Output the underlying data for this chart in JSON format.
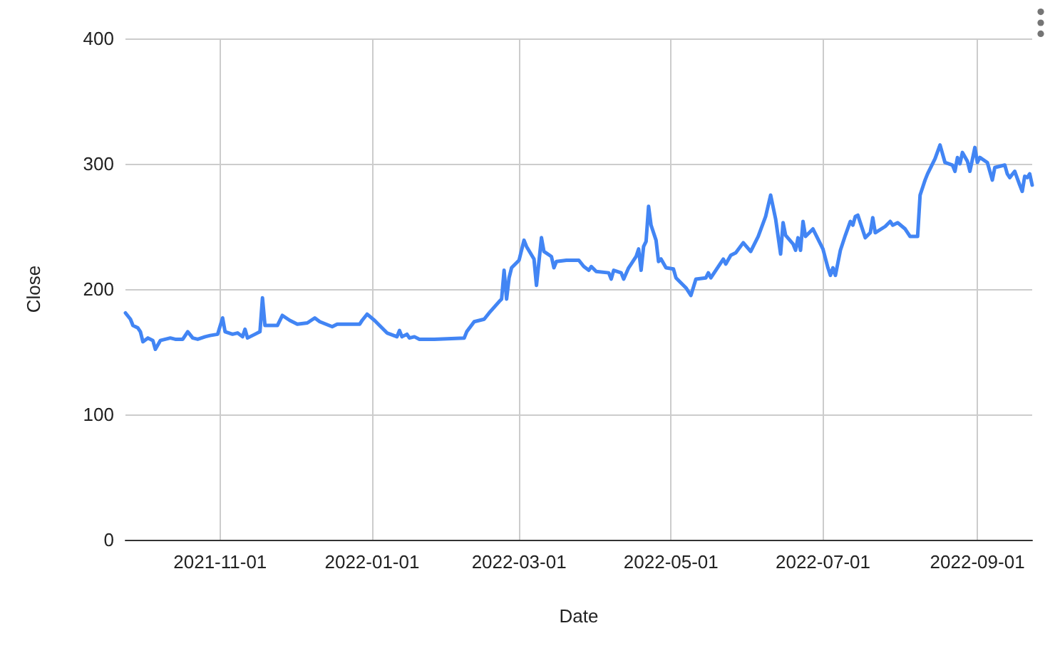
{
  "chart_data": {
    "type": "line",
    "xlabel": "Date",
    "ylabel": "Close",
    "color": "#4285f4",
    "grid": true,
    "x": [
      "2021-09-24",
      "2021-09-26",
      "2021-09-27",
      "2021-09-29",
      "2021-09-30",
      "2021-10-01",
      "2021-10-03",
      "2021-10-05",
      "2021-10-06",
      "2021-10-08",
      "2021-10-12",
      "2021-10-14",
      "2021-10-17",
      "2021-10-19",
      "2021-10-21",
      "2021-10-23",
      "2021-10-26",
      "2021-10-28",
      "2021-10-31",
      "2021-11-02",
      "2021-11-03",
      "2021-11-06",
      "2021-11-08",
      "2021-11-10",
      "2021-11-11",
      "2021-11-12",
      "2021-11-15",
      "2021-11-17",
      "2021-11-18",
      "2021-11-19",
      "2021-11-24",
      "2021-11-26",
      "2021-11-29",
      "2021-12-02",
      "2021-12-06",
      "2021-12-09",
      "2021-12-11",
      "2021-12-16",
      "2021-12-18",
      "2021-12-27",
      "2021-12-28",
      "2021-12-30",
      "2022-01-02",
      "2022-01-05",
      "2022-01-07",
      "2022-01-11",
      "2022-01-12",
      "2022-01-13",
      "2022-01-15",
      "2022-01-16",
      "2022-01-18",
      "2022-01-20",
      "2022-01-26",
      "2022-02-07",
      "2022-02-08",
      "2022-02-11",
      "2022-02-15",
      "2022-02-17",
      "2022-02-21",
      "2022-02-22",
      "2022-02-23",
      "2022-02-24",
      "2022-02-25",
      "2022-02-26",
      "2022-03-01",
      "2022-03-03",
      "2022-03-04",
      "2022-03-07",
      "2022-03-08",
      "2022-03-10",
      "2022-03-11",
      "2022-03-14",
      "2022-03-15",
      "2022-03-16",
      "2022-03-20",
      "2022-03-25",
      "2022-03-27",
      "2022-03-29",
      "2022-03-30",
      "2022-04-01",
      "2022-04-06",
      "2022-04-07",
      "2022-04-08",
      "2022-04-11",
      "2022-04-12",
      "2022-04-14",
      "2022-04-15",
      "2022-04-17",
      "2022-04-18",
      "2022-04-19",
      "2022-04-20",
      "2022-04-21",
      "2022-04-22",
      "2022-04-23",
      "2022-04-25",
      "2022-04-26",
      "2022-04-27",
      "2022-04-29",
      "2022-05-02",
      "2022-05-03",
      "2022-05-05",
      "2022-05-07",
      "2022-05-09",
      "2022-05-11",
      "2022-05-15",
      "2022-05-16",
      "2022-05-17",
      "2022-05-19",
      "2022-05-22",
      "2022-05-23",
      "2022-05-25",
      "2022-05-27",
      "2022-05-30",
      "2022-06-02",
      "2022-06-05",
      "2022-06-08",
      "2022-06-10",
      "2022-06-12",
      "2022-06-14",
      "2022-06-15",
      "2022-06-16",
      "2022-06-19",
      "2022-06-20",
      "2022-06-21",
      "2022-06-22",
      "2022-06-23",
      "2022-06-24",
      "2022-06-27",
      "2022-06-30",
      "2022-07-01",
      "2022-07-03",
      "2022-07-04",
      "2022-07-05",
      "2022-07-06",
      "2022-07-08",
      "2022-07-10",
      "2022-07-12",
      "2022-07-13",
      "2022-07-14",
      "2022-07-15",
      "2022-07-18",
      "2022-07-20",
      "2022-07-21",
      "2022-07-22",
      "2022-07-26",
      "2022-07-28",
      "2022-07-29",
      "2022-07-31",
      "2022-08-03",
      "2022-08-05",
      "2022-08-08",
      "2022-08-09",
      "2022-08-11",
      "2022-08-12",
      "2022-08-15",
      "2022-08-17",
      "2022-08-19",
      "2022-08-22",
      "2022-08-23",
      "2022-08-24",
      "2022-08-25",
      "2022-08-26",
      "2022-08-28",
      "2022-08-29",
      "2022-08-31",
      "2022-09-01",
      "2022-09-02",
      "2022-09-05",
      "2022-09-07",
      "2022-09-08",
      "2022-09-12",
      "2022-09-13",
      "2022-09-14",
      "2022-09-16",
      "2022-09-18",
      "2022-09-19",
      "2022-09-20",
      "2022-09-21",
      "2022-09-22",
      "2022-09-23"
    ],
    "values": [
      181,
      176,
      171,
      169,
      166,
      158,
      161,
      159,
      152,
      159,
      161,
      160,
      160,
      166,
      161,
      160,
      162,
      163,
      164,
      177,
      166,
      164,
      165,
      162,
      168,
      161,
      164,
      166,
      193,
      171,
      171,
      179,
      175,
      172,
      173,
      177,
      174,
      170,
      172,
      172,
      175,
      180,
      175,
      169,
      165,
      162,
      167,
      162,
      164,
      161,
      162,
      160,
      160,
      161,
      166,
      174,
      176,
      181,
      190,
      192,
      215,
      192,
      209,
      217,
      223,
      239,
      234,
      224,
      203,
      241,
      230,
      226,
      217,
      222,
      223,
      223,
      218,
      215,
      218,
      214,
      213,
      208,
      215,
      213,
      208,
      217,
      220,
      226,
      232,
      215,
      234,
      238,
      266,
      251,
      239,
      222,
      224,
      217,
      216,
      209,
      205,
      201,
      195,
      208,
      209,
      213,
      209,
      215,
      224,
      220,
      227,
      229,
      237,
      230,
      242,
      258,
      275,
      256,
      228,
      253,
      243,
      236,
      231,
      241,
      231,
      254,
      242,
      248,
      236,
      232,
      217,
      211,
      217,
      211,
      231,
      243,
      254,
      251,
      258,
      259,
      241,
      245,
      257,
      245,
      250,
      254,
      251,
      253,
      248,
      242,
      242,
      275,
      287,
      292,
      304,
      315,
      301,
      299,
      294,
      305,
      300,
      309,
      302,
      294,
      313,
      301,
      305,
      301,
      287,
      297,
      299,
      292,
      289,
      294,
      283,
      278,
      290,
      289,
      292,
      283
    ],
    "xlim": [
      "2021-09-24",
      "2022-09-23"
    ],
    "xticks": [
      "2021-11-01",
      "2022-01-01",
      "2022-03-01",
      "2022-05-01",
      "2022-07-01",
      "2022-09-01"
    ],
    "ylim": [
      0,
      400
    ],
    "yticks": [
      0,
      100,
      200,
      300,
      400
    ]
  }
}
